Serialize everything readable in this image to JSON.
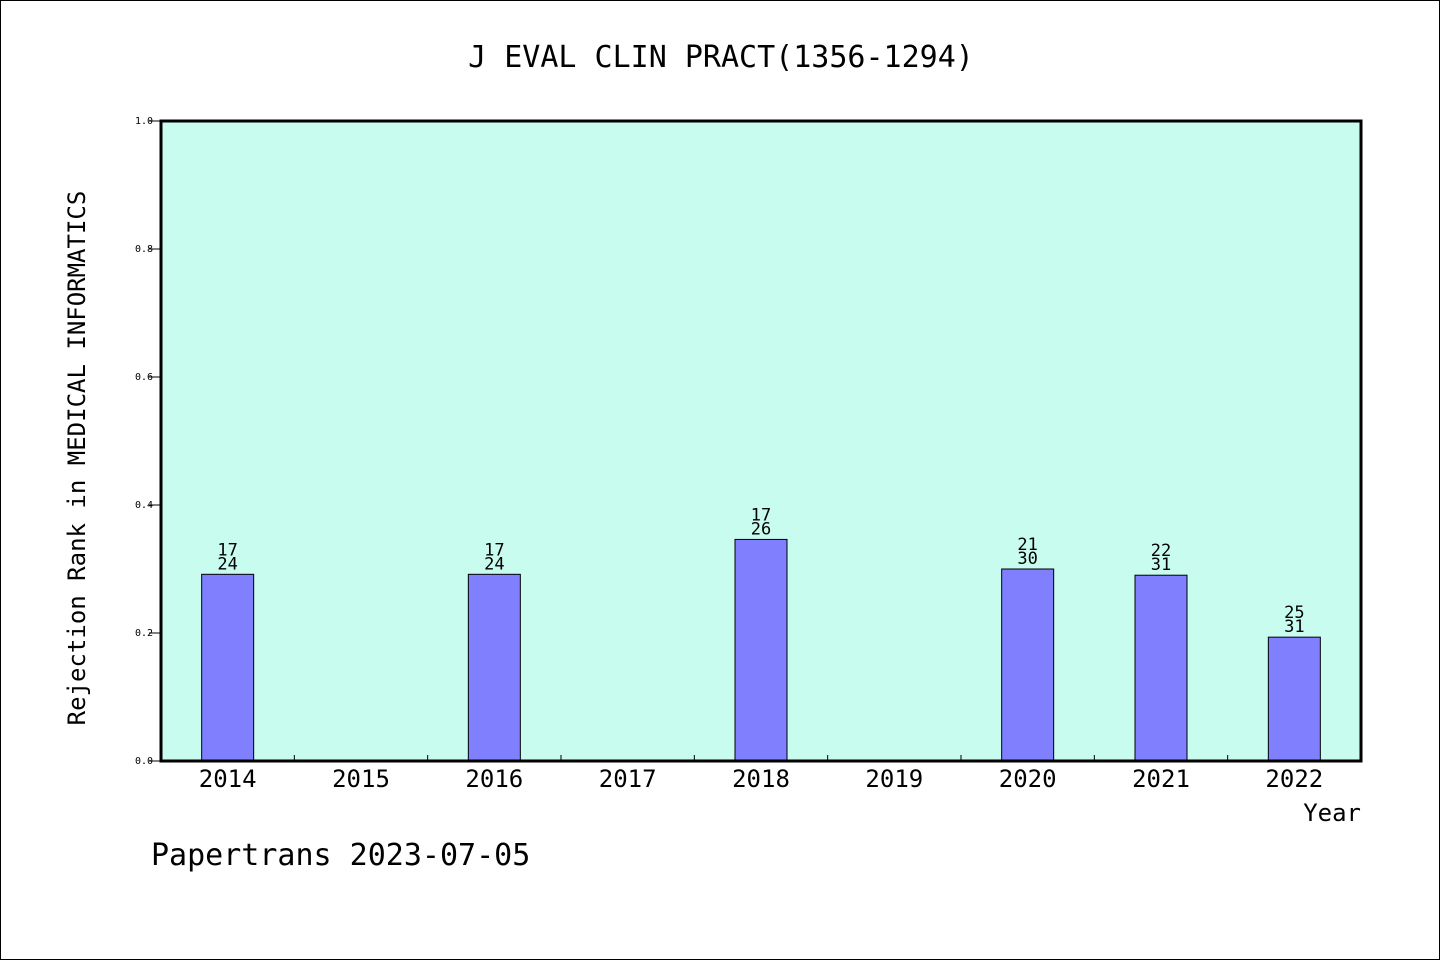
{
  "chart_data": {
    "type": "bar",
    "title": "J EVAL CLIN PRACT(1356-1294)",
    "xlabel": "Year",
    "ylabel": "Rejection Rank in MEDICAL INFORMATICS",
    "categories": [
      "2014",
      "2015",
      "2016",
      "2017",
      "2018",
      "2019",
      "2020",
      "2021",
      "2022"
    ],
    "values": [
      0.2917,
      null,
      0.2917,
      null,
      0.3462,
      null,
      0.3,
      0.2903,
      0.1935
    ],
    "bar_labels": [
      [
        "17",
        "24"
      ],
      null,
      [
        "17",
        "24"
      ],
      null,
      [
        "17",
        "26"
      ],
      null,
      [
        "21",
        "30"
      ],
      [
        "22",
        "31"
      ],
      [
        "25",
        "31"
      ]
    ],
    "ylim": [
      0,
      1
    ],
    "yticks": [
      "0.0",
      "0.2",
      "0.4",
      "0.6",
      "0.8",
      "1.0"
    ],
    "grid": false,
    "colors": {
      "plot_background": "#c8fcee",
      "bar_fill": "#8080ff",
      "bar_stroke": "#000000",
      "axis": "#000000"
    }
  },
  "footer": {
    "text": "Papertrans 2023-07-05"
  }
}
